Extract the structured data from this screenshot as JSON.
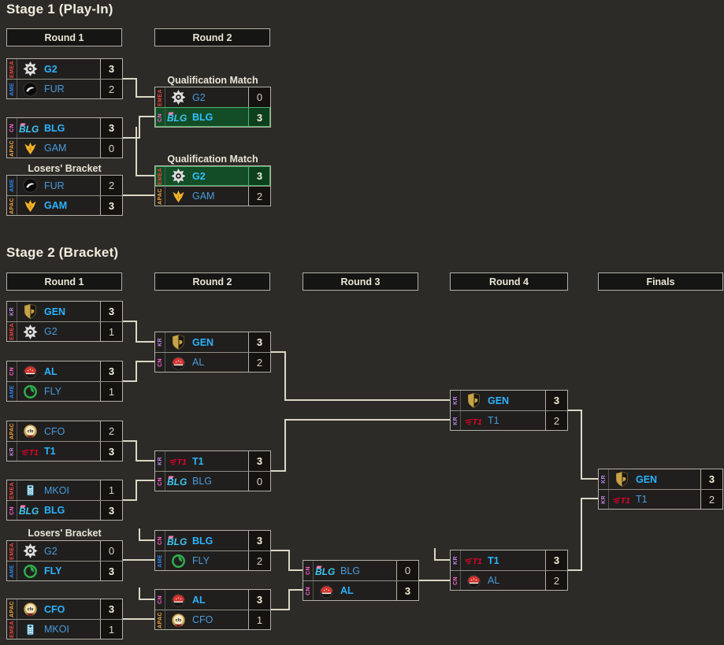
{
  "colors": {
    "background": "#2d2b28",
    "box_border": "#b2b0a7",
    "connector": "#dbd7c4",
    "qualified_green": "#124d27",
    "qualified_border": "#54b268",
    "winner_blue": "#2bb3ff",
    "loser_blue": "#4a9add",
    "score_text": "#f2efda"
  },
  "regions": {
    "EMEA": "#e8453c",
    "AME": "#2f80ed",
    "CN": "#ff5fd2",
    "APAC": "#f0a13c",
    "KR": "#bd87e8"
  },
  "teams": {
    "G2": {
      "label": "G2",
      "region": "EMEA",
      "icon": "g2-logo-icon"
    },
    "FUR": {
      "label": "FUR",
      "region": "AME",
      "icon": "furia-logo-icon"
    },
    "BLG": {
      "label": "BLG",
      "region": "CN",
      "icon": "blg-logo-icon"
    },
    "GAM": {
      "label": "GAM",
      "region": "APAC",
      "icon": "gam-logo-icon"
    },
    "GEN": {
      "label": "GEN",
      "region": "KR",
      "icon": "geng-logo-icon"
    },
    "AL": {
      "label": "AL",
      "region": "CN",
      "icon": "al-logo-icon"
    },
    "FLY": {
      "label": "FLY",
      "region": "AME",
      "icon": "flyquest-logo-icon"
    },
    "CFO": {
      "label": "CFO",
      "region": "APAC",
      "icon": "cfo-logo-icon"
    },
    "T1": {
      "label": "T1",
      "region": "KR",
      "icon": "t1-logo-icon"
    },
    "MKOI": {
      "label": "MKOI",
      "region": "EMEA",
      "icon": "mkoi-logo-icon"
    }
  },
  "stage1": {
    "title": "Stage 1 (Play-In)",
    "round_headers": [
      "Round 1",
      "Round 2"
    ],
    "matches": [
      {
        "id": "s1m1",
        "header": "",
        "slots": [
          {
            "team": "G2",
            "score": "3",
            "winner": true,
            "qualified": false
          },
          {
            "team": "FUR",
            "score": "2",
            "winner": false,
            "qualified": false
          }
        ]
      },
      {
        "id": "s1m2",
        "header": "",
        "slots": [
          {
            "team": "BLG",
            "score": "3",
            "winner": true,
            "qualified": false
          },
          {
            "team": "GAM",
            "score": "0",
            "winner": false,
            "qualified": false
          }
        ]
      },
      {
        "id": "s1lb",
        "header": "Losers' Bracket",
        "slots": [
          {
            "team": "FUR",
            "score": "2",
            "winner": false,
            "qualified": false
          },
          {
            "team": "GAM",
            "score": "3",
            "winner": true,
            "qualified": false
          }
        ]
      },
      {
        "id": "s1qm1",
        "header": "Qualification Match",
        "slots": [
          {
            "team": "G2",
            "score": "0",
            "winner": false,
            "qualified": false
          },
          {
            "team": "BLG",
            "score": "3",
            "winner": true,
            "qualified": true
          }
        ]
      },
      {
        "id": "s1qm2",
        "header": "Qualification Match",
        "slots": [
          {
            "team": "G2",
            "score": "3",
            "winner": true,
            "qualified": true
          },
          {
            "team": "GAM",
            "score": "2",
            "winner": false,
            "qualified": false
          }
        ]
      }
    ]
  },
  "stage2": {
    "title": "Stage 2 (Bracket)",
    "round_headers": [
      "Round 1",
      "Round 2",
      "Round 3",
      "Round 4",
      "Finals"
    ],
    "matches": [
      {
        "id": "m1",
        "header": "",
        "slots": [
          {
            "team": "GEN",
            "score": "3",
            "winner": true
          },
          {
            "team": "G2",
            "score": "1",
            "winner": false
          }
        ]
      },
      {
        "id": "m2",
        "header": "",
        "slots": [
          {
            "team": "AL",
            "score": "3",
            "winner": true
          },
          {
            "team": "FLY",
            "score": "1",
            "winner": false
          }
        ]
      },
      {
        "id": "m3",
        "header": "",
        "slots": [
          {
            "team": "CFO",
            "score": "2",
            "winner": false
          },
          {
            "team": "T1",
            "score": "3",
            "winner": true
          }
        ]
      },
      {
        "id": "m4",
        "header": "",
        "slots": [
          {
            "team": "MKOI",
            "score": "1",
            "winner": false
          },
          {
            "team": "BLG",
            "score": "3",
            "winner": true
          }
        ]
      },
      {
        "id": "m5",
        "header": "Losers' Bracket",
        "slots": [
          {
            "team": "G2",
            "score": "0",
            "winner": false
          },
          {
            "team": "FLY",
            "score": "3",
            "winner": true
          }
        ]
      },
      {
        "id": "m6",
        "header": "",
        "slots": [
          {
            "team": "CFO",
            "score": "3",
            "winner": true
          },
          {
            "team": "MKOI",
            "score": "1",
            "winner": false
          }
        ]
      },
      {
        "id": "m7",
        "header": "",
        "slots": [
          {
            "team": "GEN",
            "score": "3",
            "winner": true
          },
          {
            "team": "AL",
            "score": "2",
            "winner": false
          }
        ]
      },
      {
        "id": "m8",
        "header": "",
        "slots": [
          {
            "team": "T1",
            "score": "3",
            "winner": true
          },
          {
            "team": "BLG",
            "score": "0",
            "winner": false
          }
        ]
      },
      {
        "id": "m9",
        "header": "",
        "slots": [
          {
            "team": "BLG",
            "score": "3",
            "winner": true
          },
          {
            "team": "FLY",
            "score": "2",
            "winner": false
          }
        ]
      },
      {
        "id": "m10",
        "header": "",
        "slots": [
          {
            "team": "AL",
            "score": "3",
            "winner": true
          },
          {
            "team": "CFO",
            "score": "1",
            "winner": false
          }
        ]
      },
      {
        "id": "m11",
        "header": "",
        "slots": [
          {
            "team": "BLG",
            "score": "0",
            "winner": false
          },
          {
            "team": "AL",
            "score": "3",
            "winner": true
          }
        ]
      },
      {
        "id": "m12",
        "header": "",
        "slots": [
          {
            "team": "GEN",
            "score": "3",
            "winner": true
          },
          {
            "team": "T1",
            "score": "2",
            "winner": false
          }
        ]
      },
      {
        "id": "m13",
        "header": "",
        "slots": [
          {
            "team": "T1",
            "score": "3",
            "winner": true
          },
          {
            "team": "AL",
            "score": "2",
            "winner": false
          }
        ]
      },
      {
        "id": "m14",
        "header": "",
        "slots": [
          {
            "team": "GEN",
            "score": "3",
            "winner": true
          },
          {
            "team": "T1",
            "score": "2",
            "winner": false
          }
        ]
      }
    ]
  }
}
